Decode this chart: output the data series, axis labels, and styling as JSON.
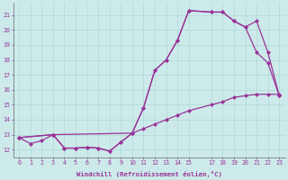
{
  "xlabel": "Windchill (Refroidissement éolien,°C)",
  "xlim": [
    -0.5,
    23.5
  ],
  "ylim": [
    11.5,
    21.8
  ],
  "xticks": [
    0,
    1,
    2,
    3,
    4,
    5,
    6,
    7,
    8,
    9,
    10,
    11,
    12,
    13,
    14,
    15,
    17,
    18,
    19,
    20,
    21,
    22,
    23
  ],
  "yticks": [
    12,
    13,
    14,
    15,
    16,
    17,
    18,
    19,
    20,
    21
  ],
  "background_color": "#cceaea",
  "grid_color": "#aad4d4",
  "line_color": "#993399",
  "line_width": 0.9,
  "marker": "D",
  "marker_size": 2.0,
  "curves": [
    {
      "x": [
        0,
        1,
        2,
        3,
        4,
        5,
        6,
        7,
        8,
        9,
        10,
        11,
        12,
        13,
        14,
        15,
        17,
        18,
        19,
        20,
        21,
        22,
        23
      ],
      "y": [
        12.8,
        12.4,
        12.6,
        13.0,
        12.1,
        12.1,
        12.15,
        12.1,
        11.9,
        12.5,
        13.1,
        13.4,
        13.7,
        14.0,
        14.3,
        14.6,
        15.0,
        15.2,
        15.5,
        15.6,
        15.7,
        15.7,
        15.7
      ]
    },
    {
      "x": [
        0,
        3,
        4,
        5,
        6,
        7,
        8,
        9,
        10,
        11,
        12,
        13,
        14,
        15,
        17,
        18,
        19,
        20,
        21,
        22,
        23
      ],
      "y": [
        12.8,
        13.0,
        12.1,
        12.1,
        12.15,
        12.1,
        11.9,
        12.5,
        13.1,
        14.8,
        17.3,
        18.0,
        19.3,
        21.3,
        21.2,
        21.2,
        20.6,
        20.2,
        18.5,
        17.8,
        15.6
      ]
    },
    {
      "x": [
        0,
        3,
        10,
        11,
        12,
        13,
        14,
        15,
        17,
        18,
        19,
        20,
        21,
        22,
        23
      ],
      "y": [
        12.8,
        13.0,
        13.1,
        14.8,
        17.3,
        18.0,
        19.3,
        21.3,
        21.2,
        21.2,
        20.6,
        20.2,
        20.6,
        18.5,
        15.6
      ]
    }
  ]
}
